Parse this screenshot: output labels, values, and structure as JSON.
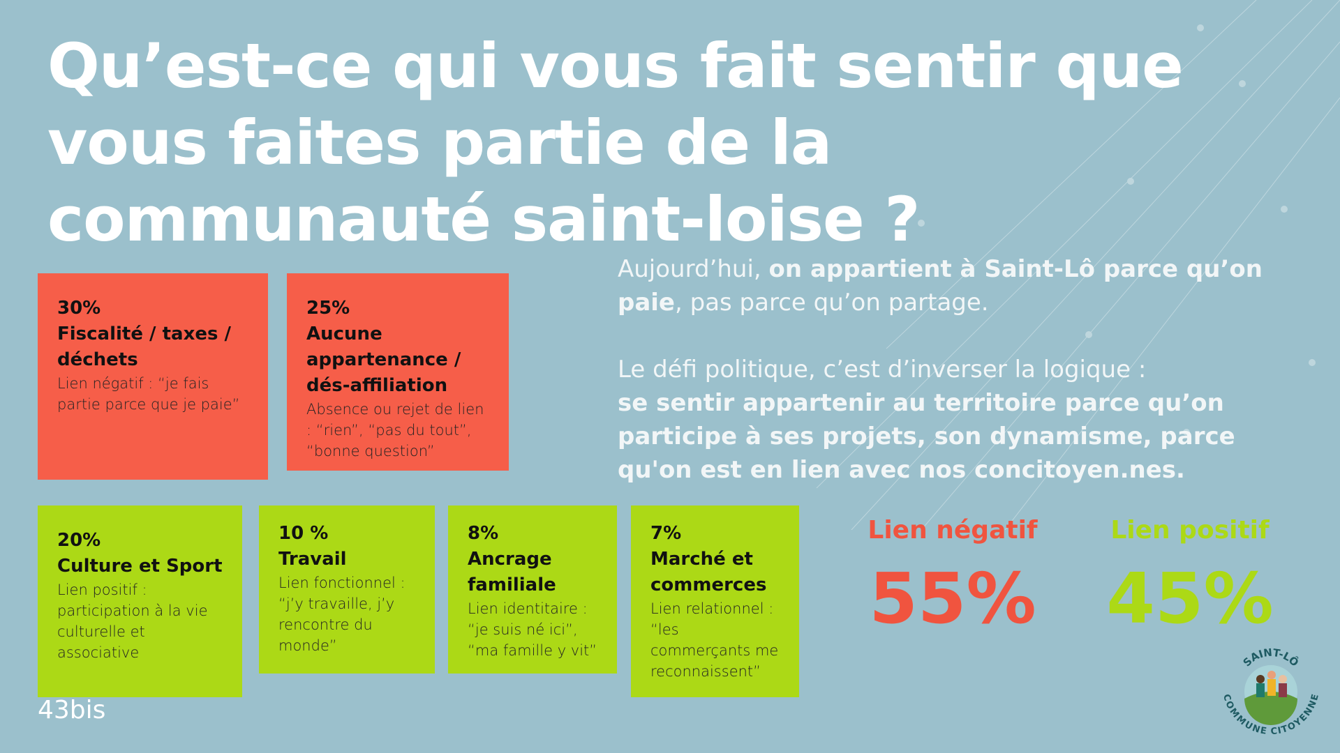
{
  "title": "Qu’est-ce qui vous fait sentir que vous faites partie de la communauté saint-loise ?",
  "negative_cards": [
    {
      "percent": "30%",
      "title": "Fiscalité / taxes / déchets",
      "desc": "Lien négatif : “je fais partie parce que je paie”"
    },
    {
      "percent": "25%",
      "title": "Aucune appartenance / dés-affiliation",
      "desc": "Absence ou rejet de lien : “rien”, “pas du tout”, “bonne question”"
    }
  ],
  "positive_cards": [
    {
      "percent": "20%",
      "title": "Culture et Sport",
      "desc": "Lien positif : participation à la vie culturelle et associative"
    },
    {
      "percent": "10 %",
      "title": "Travail",
      "desc": "Lien fonctionnel : “j’y travaille, j’y rencontre du monde”"
    },
    {
      "percent": "8%",
      "title": "Ancrage familiale",
      "desc": "Lien identitaire : “je suis né ici”, “ma famille y vit”"
    },
    {
      "percent": "7%",
      "title": "Marché et commerces",
      "desc": "Lien relationnel : “les commerçants me reconnaissent”"
    }
  ],
  "analysis": {
    "p1_start": "Aujourd’hui, ",
    "p1_bold": "on appartient à Saint-Lô parce qu’on paie",
    "p1_end": ", pas parce qu’on partage.",
    "p2_start": "Le défi politique, c’est d’inverser la logique :",
    "p2_bold": "se sentir appartenir au territoire parce qu’on participe à ses projets, son dynamisme, parce qu'on est en lien avec nos concitoyen.nes."
  },
  "summary": {
    "negative_label": "Lien négatif",
    "negative_value": "55%",
    "positive_label": "Lien positif",
    "positive_value": "45%"
  },
  "brand": "43bis",
  "logo_text": "SAINT-LÔ COMMUNE CITOYENNE",
  "colors": {
    "background": "#9bc0cc",
    "negative": "#f65e49",
    "positive": "#acd916"
  }
}
